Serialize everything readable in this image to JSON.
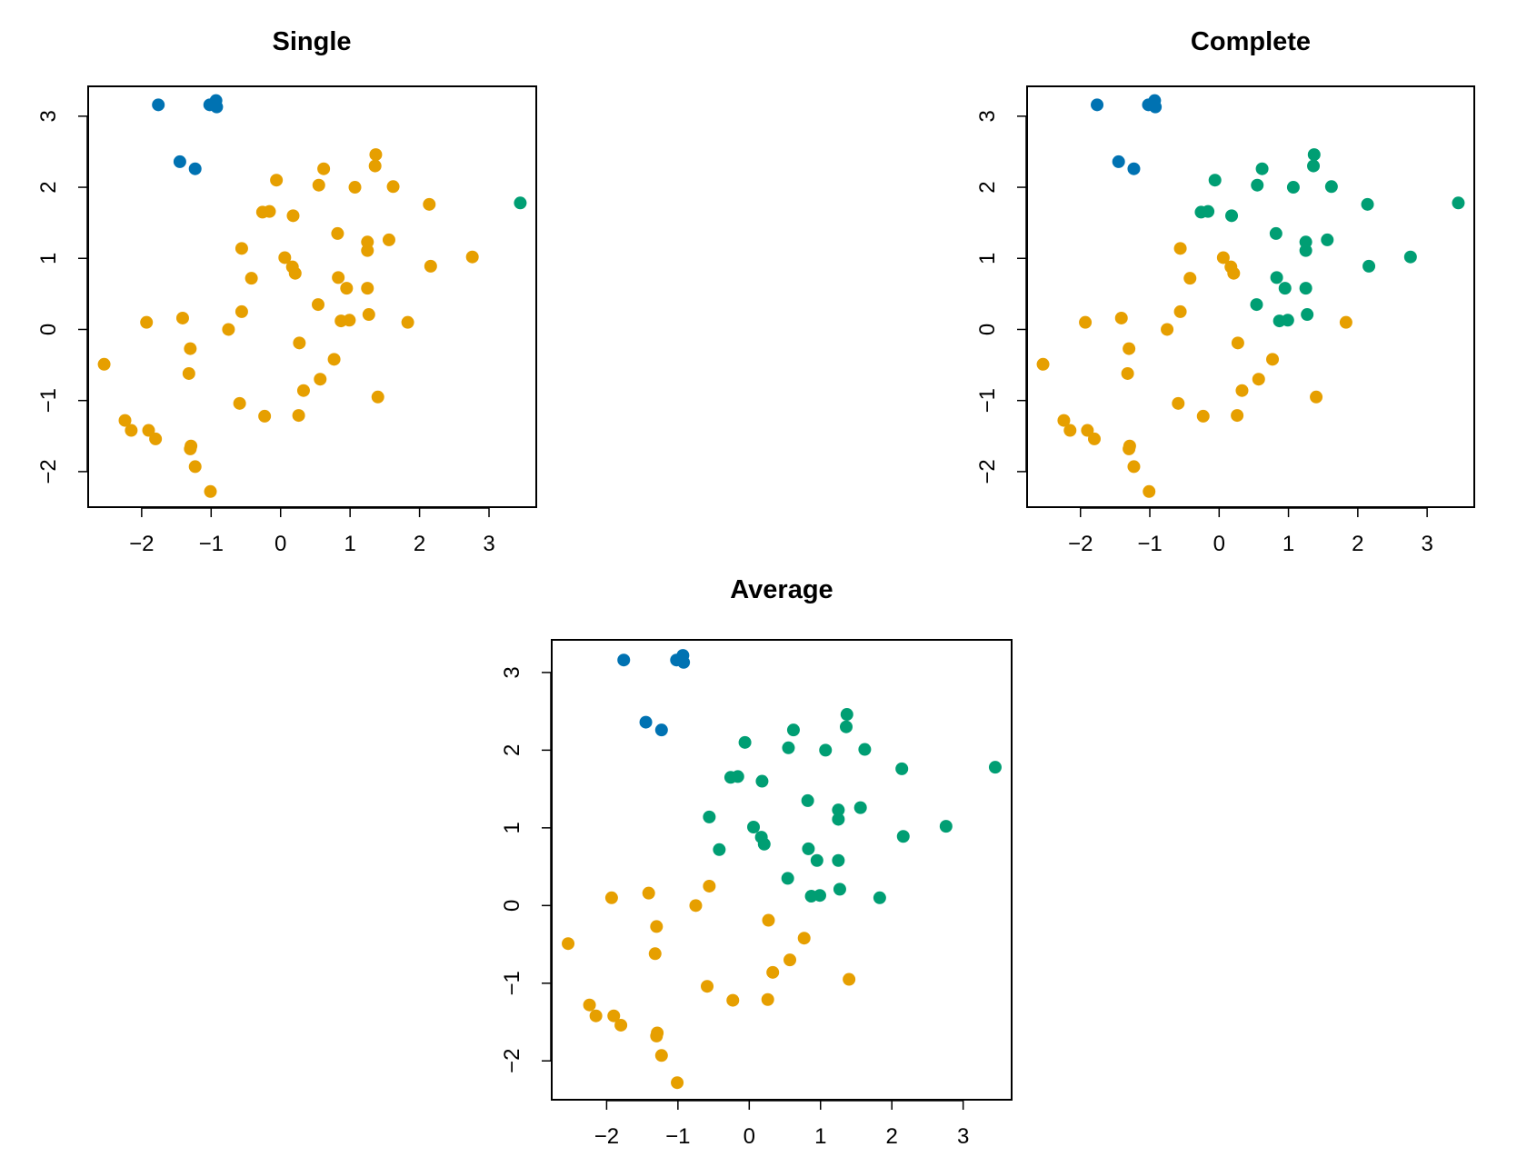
{
  "chart_data": [
    {
      "type": "scatter",
      "title": "Single",
      "method": "single",
      "xlabel": "",
      "ylabel": ""
    },
    {
      "type": "scatter",
      "title": "Complete",
      "method": "complete",
      "xlabel": "",
      "ylabel": ""
    },
    {
      "type": "scatter",
      "title": "Average",
      "method": "average",
      "xlabel": "",
      "ylabel": ""
    }
  ],
  "axes": {
    "xlim": [
      -2.77,
      3.68
    ],
    "ylim": [
      -2.5,
      3.42
    ],
    "xticks": [
      -2,
      -1,
      0,
      1,
      2,
      3
    ],
    "yticks": [
      -2,
      -1,
      0,
      1,
      2,
      3
    ],
    "xtick_labels": [
      "−2",
      "−1",
      "0",
      "1",
      "2",
      "3"
    ],
    "ytick_labels": [
      "−2",
      "−1",
      "0",
      "1",
      "2",
      "3"
    ]
  },
  "colors": {
    "1": "#E69F00",
    "2": "#0072B2",
    "3": "#009E73"
  },
  "points": {
    "x": [
      -1.76,
      -1.02,
      -0.93,
      -0.92,
      -1.45,
      -1.23,
      3.45,
      1.37,
      1.36,
      0.62,
      -0.06,
      0.55,
      1.07,
      1.62,
      2.14,
      -0.26,
      -0.16,
      0.18,
      0.82,
      1.25,
      1.25,
      1.56,
      -0.56,
      0.06,
      2.76,
      0.17,
      0.21,
      2.16,
      -0.42,
      0.83,
      0.95,
      1.25,
      0.54,
      -0.56,
      1.27,
      0.87,
      0.99,
      -1.93,
      -1.41,
      -0.75,
      1.83,
      0.27,
      -1.3,
      -2.54,
      -1.32,
      0.77,
      0.57,
      0.33,
      1.4,
      -0.59,
      -0.23,
      0.26,
      -2.24,
      -2.15,
      -1.9,
      -1.8,
      -1.29,
      -1.3,
      -1.23,
      -1.01
    ],
    "y": [
      3.16,
      3.16,
      3.22,
      3.13,
      2.36,
      2.26,
      1.78,
      2.46,
      2.3,
      2.26,
      2.1,
      2.03,
      2.0,
      2.01,
      1.76,
      1.65,
      1.66,
      1.6,
      1.35,
      1.23,
      1.11,
      1.26,
      1.14,
      1.01,
      1.02,
      0.88,
      0.79,
      0.89,
      0.72,
      0.73,
      0.58,
      0.58,
      0.35,
      0.25,
      0.21,
      0.12,
      0.13,
      0.1,
      0.16,
      0.0,
      0.1,
      -0.19,
      -0.27,
      -0.49,
      -0.62,
      -0.42,
      -0.7,
      -0.86,
      -0.95,
      -1.04,
      -1.22,
      -1.21,
      -1.28,
      -1.42,
      -1.42,
      -1.54,
      -1.64,
      -1.68,
      -1.93,
      -2.28
    ]
  },
  "clusters": {
    "single": [
      2,
      2,
      2,
      2,
      2,
      2,
      3,
      1,
      1,
      1,
      1,
      1,
      1,
      1,
      1,
      1,
      1,
      1,
      1,
      1,
      1,
      1,
      1,
      1,
      1,
      1,
      1,
      1,
      1,
      1,
      1,
      1,
      1,
      1,
      1,
      1,
      1,
      1,
      1,
      1,
      1,
      1,
      1,
      1,
      1,
      1,
      1,
      1,
      1,
      1,
      1,
      1,
      1,
      1,
      1,
      1,
      1,
      1,
      1,
      1
    ],
    "complete": [
      2,
      2,
      2,
      2,
      2,
      2,
      3,
      3,
      3,
      3,
      3,
      3,
      3,
      3,
      3,
      3,
      3,
      3,
      3,
      3,
      3,
      3,
      1,
      1,
      3,
      1,
      1,
      3,
      1,
      3,
      3,
      3,
      3,
      1,
      3,
      3,
      3,
      1,
      1,
      1,
      1,
      1,
      1,
      1,
      1,
      1,
      1,
      1,
      1,
      1,
      1,
      1,
      1,
      1,
      1,
      1,
      1,
      1,
      1,
      1
    ],
    "average": [
      2,
      2,
      2,
      2,
      2,
      2,
      3,
      3,
      3,
      3,
      3,
      3,
      3,
      3,
      3,
      3,
      3,
      3,
      3,
      3,
      3,
      3,
      3,
      3,
      3,
      3,
      3,
      3,
      3,
      3,
      3,
      3,
      3,
      1,
      3,
      3,
      3,
      1,
      1,
      1,
      3,
      1,
      1,
      1,
      1,
      1,
      1,
      1,
      1,
      1,
      1,
      1,
      1,
      1,
      1,
      1,
      1,
      1,
      1,
      1
    ]
  }
}
